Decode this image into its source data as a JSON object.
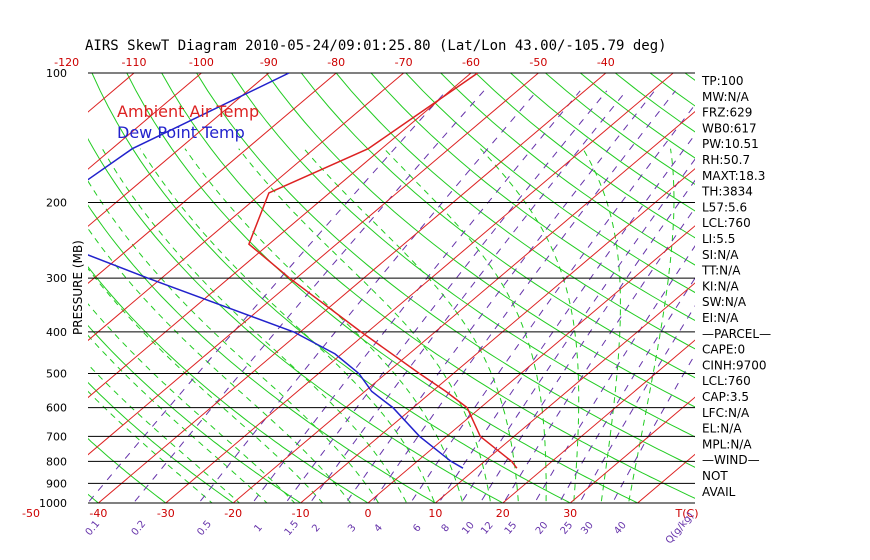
{
  "title": "AIRS SkewT Diagram 2010-05-24/09:01:25.80 (Lat/Lon 43.00/-105.79 deg)",
  "ylabel": "PRESSURE (MB)",
  "legend": {
    "ambient": {
      "label": "Ambient Air Temp",
      "color": "#dd2222"
    },
    "dew": {
      "label": "Dew Point Temp",
      "color": "#2222cc"
    }
  },
  "top_ticks": [
    "-120",
    "-110",
    "-100",
    "-90",
    "-80",
    "-70",
    "-60",
    "-50",
    "-40"
  ],
  "bottom_ticks": [
    "-50",
    "-40",
    "-30",
    "-20",
    "-10",
    "0",
    "10",
    "20",
    "30",
    "T(C)"
  ],
  "mixing_ratio_labels": [
    "0.1",
    "0.2",
    "0.5",
    "1",
    "1.5",
    "2",
    "3",
    "4",
    "6",
    "8",
    "10",
    "12",
    "15",
    "20",
    "25",
    "30",
    "40",
    "Q(g/kg)"
  ],
  "pressure_labels": [
    "100",
    "200",
    "300",
    "400",
    "500",
    "600",
    "700",
    "800",
    "900",
    "1000"
  ],
  "indices": [
    "TP:100",
    "MW:N/A",
    "FRZ:629",
    "WB0:617",
    "PW:10.51",
    "RH:50.7",
    "MAXT:18.3",
    "TH:3834",
    "L57:5.6",
    "LCL:760",
    "LI:5.5",
    "SI:N/A",
    "TT:N/A",
    "KI:N/A",
    "SW:N/A",
    "EI:N/A",
    "—PARCEL—",
    "CAPE:0",
    "CINH:9700",
    "LCL:760",
    "CAP:3.5",
    "LFC:N/A",
    "EL:N/A",
    "MPL:N/A",
    "—WIND—",
    "NOT",
    "AVAIL"
  ],
  "colors": {
    "isotherm": "#dd2222",
    "dry_adiabat": "#22cc22",
    "moist_adiabat": "#22cc22",
    "mixing_ratio": "#6633aa",
    "temperature": "#dd2222",
    "dewpoint": "#2222cc",
    "isobar": "#000000"
  },
  "chart_data": {
    "type": "line",
    "title": "AIRS SkewT Diagram 2010-05-24/09:01:25.80 (Lat/Lon 43.00/-105.79 deg)",
    "xlabel": "T(C)",
    "ylabel": "PRESSURE (MB)",
    "y_scale": "log",
    "ylim": [
      1000,
      100
    ],
    "xlim": [
      -50,
      40
    ],
    "grid": true,
    "legend_placement": "top-left",
    "series": [
      {
        "name": "Ambient Air Temp",
        "pressure": [
          100,
          150,
          190,
          250,
          300,
          400,
          500,
          550,
          600,
          700,
          800,
          830
        ],
        "values": [
          -59,
          -62,
          -69,
          -63,
          -51,
          -31,
          -15,
          -8,
          -2,
          5,
          14,
          16
        ]
      },
      {
        "name": "Dew Point Temp",
        "pressure": [
          100,
          150,
          200,
          250,
          300,
          400,
          450,
          500,
          550,
          600,
          700,
          800,
          830
        ],
        "values": [
          -87,
          -97,
          -99,
          -91,
          -72,
          -41,
          -31,
          -24,
          -19,
          -13,
          -4,
          5,
          8
        ]
      }
    ]
  }
}
